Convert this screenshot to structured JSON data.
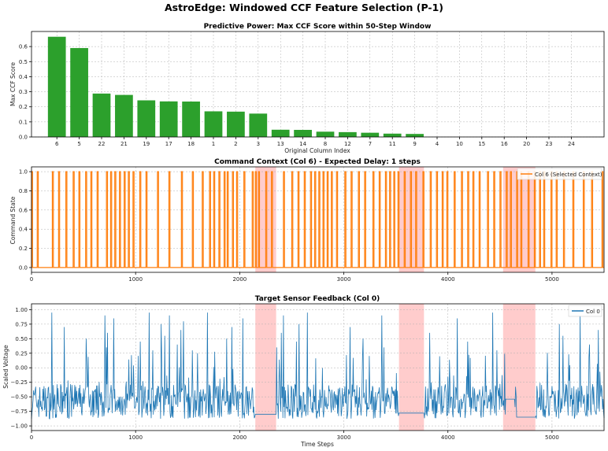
{
  "suptitle": "AstroEdge: Windowed CCF Feature Selection (P-1)",
  "chart_data": [
    {
      "type": "bar",
      "title": "Predictive Power: Max CCF Score within 50-Step Window",
      "xlabel": "Original Column Index",
      "ylabel": "Max CCF Score",
      "categories": [
        "6",
        "5",
        "22",
        "21",
        "19",
        "17",
        "18",
        "1",
        "2",
        "3",
        "13",
        "14",
        "8",
        "12",
        "7",
        "11",
        "9",
        "4",
        "10",
        "15",
        "16",
        "20",
        "23",
        "24"
      ],
      "values": [
        0.665,
        0.59,
        0.288,
        0.279,
        0.243,
        0.236,
        0.235,
        0.17,
        0.168,
        0.155,
        0.048,
        0.047,
        0.035,
        0.032,
        0.028,
        0.022,
        0.02,
        0.0,
        0.0,
        0.0,
        0.0,
        0.0,
        0.0,
        0.0
      ],
      "ylim": [
        0,
        0.7
      ],
      "yticks": [
        0.0,
        0.1,
        0.2,
        0.3,
        0.4,
        0.5,
        0.6
      ],
      "color": "#2ca02c",
      "grid": true
    },
    {
      "type": "line",
      "title": "Command Context (Col 6) - Expected Delay: 1 steps",
      "xlabel": "",
      "ylabel": "Command State",
      "xlim": [
        0,
        5500
      ],
      "ylim": [
        -0.05,
        1.05
      ],
      "xticks": [
        0,
        1000,
        2000,
        3000,
        4000,
        5000
      ],
      "yticks": [
        0.0,
        0.2,
        0.4,
        0.6,
        0.8,
        1.0
      ],
      "series": [
        {
          "name": "Col 6 (Selected Context)",
          "color": "#ff7f0e",
          "pulse_starts": [
            0,
            55,
            200,
            260,
            330,
            400,
            455,
            520,
            570,
            630,
            720,
            760,
            800,
            845,
            890,
            930,
            975,
            1040,
            1100,
            1210,
            1320,
            1440,
            1545,
            1640,
            1710,
            1750,
            1800,
            1850,
            1880,
            1930,
            1970,
            2040,
            2120,
            2150,
            2180,
            2250,
            2305,
            2420,
            2500,
            2560,
            2620,
            2680,
            2720,
            2760,
            2800,
            2840,
            2880,
            2930,
            3010,
            3070,
            3140,
            3200,
            3280,
            3340,
            3400,
            3440,
            3480,
            3520,
            3580,
            3640,
            3690,
            3760,
            3830,
            3890,
            3945,
            3990,
            4060,
            4130,
            4190,
            4240,
            4300,
            4380,
            4440,
            4500,
            4560,
            4600,
            4660,
            4700,
            4770,
            4830,
            4880,
            4920,
            4990,
            5040,
            5110,
            5200,
            5300,
            5380,
            5480
          ],
          "pulse_width": 10,
          "low": 0,
          "high": 1
        }
      ],
      "shaded_regions": [
        [
          2150,
          2350
        ],
        [
          3530,
          3770
        ],
        [
          4530,
          4840
        ]
      ],
      "legend": "top-right",
      "grid": true
    },
    {
      "type": "line",
      "title": "Target Sensor Feedback (Col 0)",
      "xlabel": "Time Steps",
      "ylabel": "Scaled Voltage",
      "xlim": [
        0,
        5500
      ],
      "ylim": [
        -1.08,
        1.1
      ],
      "xticks": [
        0,
        1000,
        2000,
        3000,
        4000,
        5000
      ],
      "yticks": [
        -1.0,
        -0.75,
        -0.5,
        -0.25,
        0.0,
        0.25,
        0.5,
        0.75,
        1.0
      ],
      "series": [
        {
          "name": "Col 0",
          "color": "#1f77b4",
          "baseline": -0.58,
          "noise_amplitude": 0.3,
          "spike_peaks": [
            0.95,
            0.7,
            0.5,
            0.9,
            0.35,
            0.6,
            0.85,
            0.45,
            0.95,
            0.3,
            0.75,
            0.55,
            0.9,
            0.4,
            0.65,
            0.8,
            0.3,
            0.95,
            0.5,
            0.7,
            0.85,
            0.35,
            0.6,
            0.9,
            0.45,
            0.75
          ],
          "flat_segments": [
            {
              "x": [
                2150,
                2350
              ],
              "y": -0.8
            },
            {
              "x": [
                3530,
                3770
              ],
              "y": -0.78
            },
            {
              "x": [
                4560,
                4640
              ],
              "y": -0.54
            },
            {
              "x": [
                4660,
                4840
              ],
              "y": -0.85
            }
          ]
        }
      ],
      "shaded_regions": [
        [
          2150,
          2350
        ],
        [
          3530,
          3770
        ],
        [
          4530,
          4840
        ]
      ],
      "legend": "top-right",
      "grid": true
    }
  ]
}
